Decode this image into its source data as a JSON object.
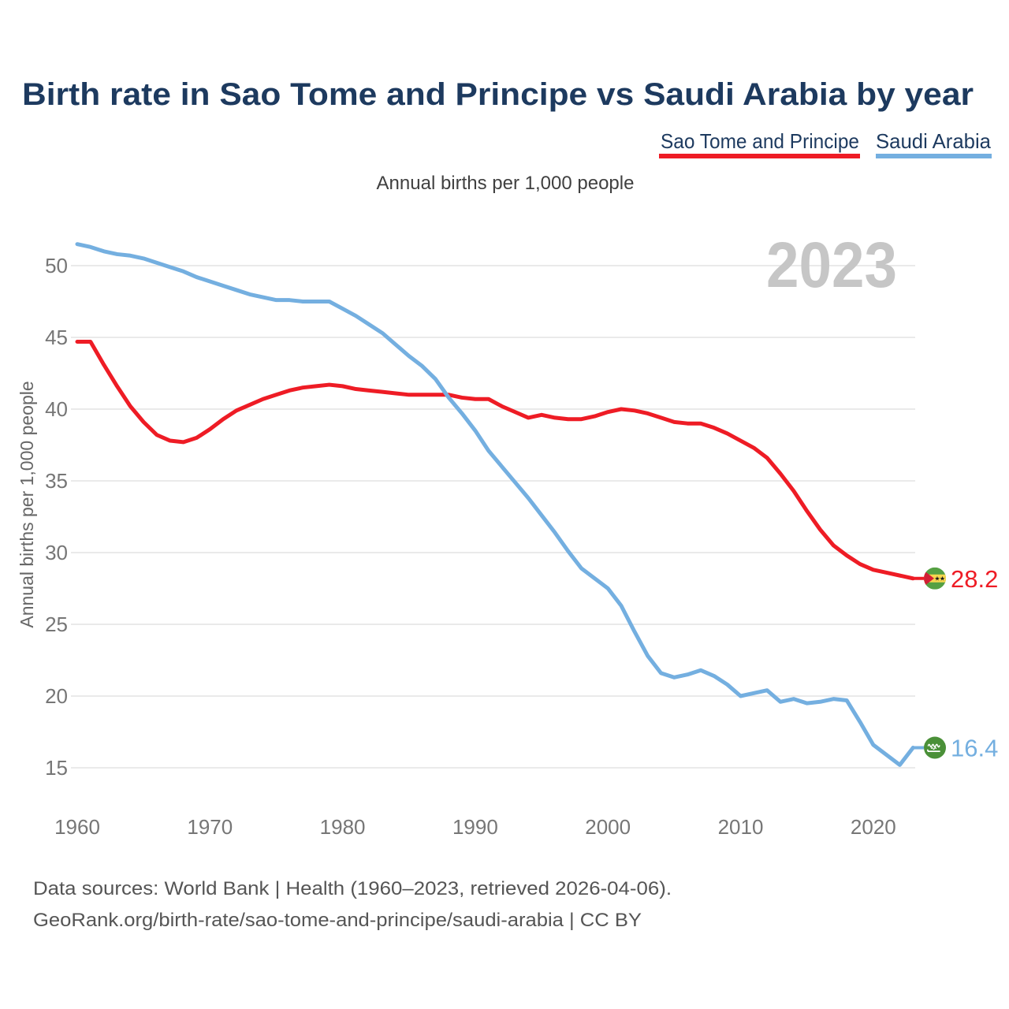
{
  "header": {
    "title": "Birth rate in Sao Tome and Principe vs Saudi Arabia by year"
  },
  "legend": {
    "items": [
      {
        "label": "Sao Tome and Principe",
        "color": "#ee1c25"
      },
      {
        "label": "Saudi Arabia",
        "color": "#74afe0"
      }
    ]
  },
  "subtitle": "Annual births per 1,000 people",
  "watermark": {
    "year": "2023"
  },
  "chart_data": {
    "type": "line",
    "title": "Birth rate in Sao Tome and Principe vs Saudi Arabia by year",
    "xlabel": "",
    "ylabel": "Annual births per 1,000 people",
    "xlim": [
      1960,
      2023
    ],
    "ylim": [
      14,
      52
    ],
    "x_ticks": [
      1960,
      1970,
      1980,
      1990,
      2000,
      2010,
      2020
    ],
    "y_ticks": [
      15,
      20,
      25,
      30,
      35,
      40,
      45,
      50
    ],
    "grid": "horizontal",
    "legend_position": "top-right",
    "years": [
      1960,
      1961,
      1962,
      1963,
      1964,
      1965,
      1966,
      1967,
      1968,
      1969,
      1970,
      1971,
      1972,
      1973,
      1974,
      1975,
      1976,
      1977,
      1978,
      1979,
      1980,
      1981,
      1982,
      1983,
      1984,
      1985,
      1986,
      1987,
      1988,
      1989,
      1990,
      1991,
      1992,
      1993,
      1994,
      1995,
      1996,
      1997,
      1998,
      1999,
      2000,
      2001,
      2002,
      2003,
      2004,
      2005,
      2006,
      2007,
      2008,
      2009,
      2010,
      2011,
      2012,
      2013,
      2014,
      2015,
      2016,
      2017,
      2018,
      2019,
      2020,
      2021,
      2022,
      2023
    ],
    "series": [
      {
        "name": "Sao Tome and Principe",
        "color": "#ee1c25",
        "end_label": "28.2",
        "flag": "sao-tome-and-principe-flag",
        "values": [
          44.7,
          44.7,
          43.1,
          41.6,
          40.2,
          39.1,
          38.2,
          37.8,
          37.7,
          38.0,
          38.6,
          39.3,
          39.9,
          40.3,
          40.7,
          41.0,
          41.3,
          41.5,
          41.6,
          41.7,
          41.6,
          41.4,
          41.3,
          41.2,
          41.1,
          41.0,
          41.0,
          41.0,
          41.0,
          40.8,
          40.7,
          40.7,
          40.2,
          39.8,
          39.4,
          39.6,
          39.4,
          39.3,
          39.3,
          39.5,
          39.8,
          40.0,
          39.9,
          39.7,
          39.4,
          39.1,
          39.0,
          39.0,
          38.7,
          38.3,
          37.8,
          37.3,
          36.6,
          35.5,
          34.3,
          32.9,
          31.6,
          30.5,
          29.8,
          29.2,
          28.8,
          28.6,
          28.4,
          28.2
        ]
      },
      {
        "name": "Saudi Arabia",
        "color": "#74afe0",
        "end_label": "16.4",
        "flag": "saudi-arabia-flag",
        "values": [
          51.5,
          51.3,
          51.0,
          50.8,
          50.7,
          50.5,
          50.2,
          49.9,
          49.6,
          49.2,
          48.9,
          48.6,
          48.3,
          48.0,
          47.8,
          47.6,
          47.6,
          47.5,
          47.5,
          47.5,
          47.0,
          46.5,
          45.9,
          45.3,
          44.5,
          43.7,
          43.0,
          42.1,
          40.8,
          39.7,
          38.5,
          37.1,
          36.0,
          34.9,
          33.8,
          32.6,
          31.4,
          30.1,
          28.9,
          28.2,
          27.5,
          26.3,
          24.5,
          22.8,
          21.6,
          21.3,
          21.5,
          21.8,
          21.4,
          20.8,
          20.0,
          20.2,
          20.4,
          19.6,
          19.8,
          19.5,
          19.6,
          19.8,
          19.7,
          18.2,
          16.6,
          15.9,
          15.2,
          16.4
        ]
      }
    ]
  },
  "footer": {
    "line1": "Data sources: World Bank | Health (1960–2023, retrieved 2026-04-06).",
    "line2": "GeoRank.org/birth-rate/sao-tome-and-principe/saudi-arabia | CC BY"
  },
  "colors": {
    "title": "#1d3a5f",
    "gridline": "#e4e4e4",
    "tick_text": "#767676",
    "watermark": "#c6c6c6",
    "footer_text": "#555555",
    "stp_flag_green": "#55a043",
    "stp_flag_yellow": "#f5d64f",
    "stp_flag_red": "#d21f35",
    "saudi_flag_green": "#4a9038"
  }
}
